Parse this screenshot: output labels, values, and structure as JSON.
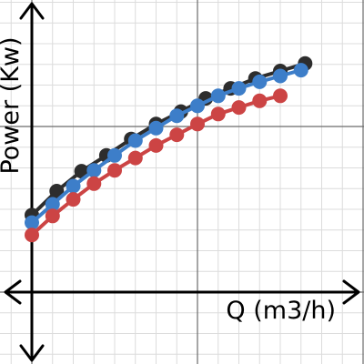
{
  "chart_data": {
    "type": "line",
    "title": "",
    "xlabel": "Q (m3/h)",
    "ylabel": "Power (Kw)",
    "grid": true,
    "legend": "none",
    "xlim": [
      -0.35,
      4.0
    ],
    "ylim": [
      -0.8,
      3.6
    ],
    "series": [
      {
        "color": "#2d2d2d",
        "x": [
          0,
          0.3,
          0.6,
          0.9,
          1.2,
          1.5,
          1.8,
          2.1,
          2.4,
          2.7,
          3.0,
          3.3
        ],
        "y": [
          0.93,
          1.22,
          1.46,
          1.65,
          1.85,
          2.03,
          2.18,
          2.34,
          2.46,
          2.58,
          2.67,
          2.76
        ]
      },
      {
        "color": "#3d7ec9",
        "x": [
          0,
          0.25,
          0.5,
          0.75,
          1.0,
          1.25,
          1.5,
          1.75,
          2.0,
          2.25,
          2.5,
          2.75,
          3.0,
          3.25
        ],
        "y": [
          0.84,
          1.06,
          1.28,
          1.47,
          1.65,
          1.83,
          1.98,
          2.13,
          2.25,
          2.37,
          2.46,
          2.54,
          2.61,
          2.68
        ]
      },
      {
        "color": "#cc4444",
        "x": [
          0,
          0.25,
          0.5,
          0.75,
          1.0,
          1.25,
          1.5,
          1.75,
          2.0,
          2.25,
          2.5,
          2.75,
          3.0
        ],
        "y": [
          0.69,
          0.92,
          1.12,
          1.31,
          1.47,
          1.62,
          1.77,
          1.9,
          2.03,
          2.15,
          2.23,
          2.31,
          2.37
        ]
      }
    ]
  }
}
